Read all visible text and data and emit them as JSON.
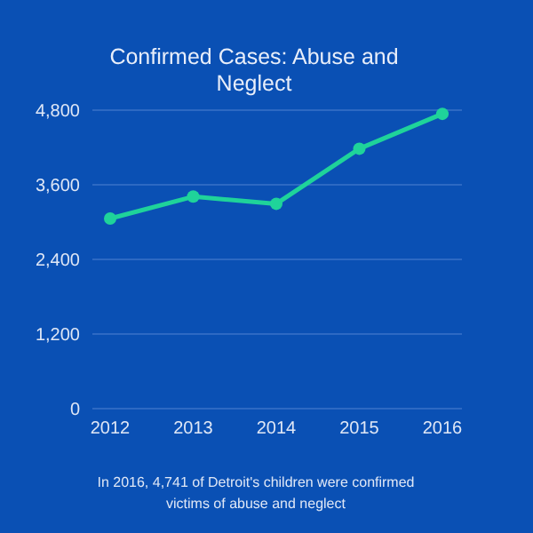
{
  "chart_data": {
    "type": "line",
    "title": "Confirmed Cases: Abuse and Neglect",
    "categories": [
      "2012",
      "2013",
      "2014",
      "2015",
      "2016"
    ],
    "series": [
      {
        "color": "#1fd39a",
        "values": [
          3057,
          3410,
          3294,
          4180,
          4741
        ]
      }
    ],
    "ylim": [
      0,
      4800
    ],
    "yticks": [
      {
        "value": 0,
        "label": "0"
      },
      {
        "value": 1200,
        "label": "1,200"
      },
      {
        "value": 2400,
        "label": "2,400"
      },
      {
        "value": 3600,
        "label": "3,600"
      },
      {
        "value": 4800,
        "label": "4,800"
      }
    ],
    "grid": "y",
    "marker": "circle",
    "line_style": "solid",
    "annotations": [
      "In 2016, 4,741 of Detroit's children were confirmed victims of abuse and neglect"
    ]
  }
}
